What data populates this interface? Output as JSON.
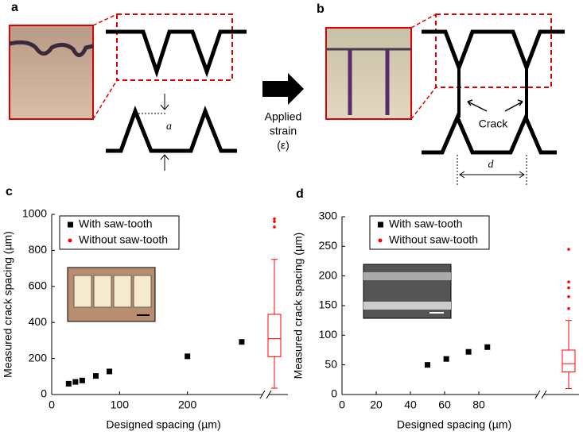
{
  "figure": {
    "panels": [
      "a",
      "b"
    ],
    "arrow_label": [
      "Applied",
      "strain",
      "(ε)"
    ],
    "crack_label": "Crack",
    "dim_a": "a",
    "dim_d": "d"
  },
  "chart_data": [
    {
      "type": "scatter",
      "panel": "c",
      "x_label": "Designed spacing (µm)",
      "y_label": "Measured crack spacing (µm)",
      "xlim": [
        0,
        300
      ],
      "xticks": [
        0,
        100,
        200
      ],
      "ylim": [
        0,
        1000
      ],
      "yticks": [
        0,
        200,
        400,
        600,
        800,
        1000
      ],
      "series": [
        {
          "name": "With saw-tooth",
          "color": "#000000",
          "x": [
            25,
            35,
            45,
            65,
            85,
            200,
            280
          ],
          "values": [
            60,
            70,
            78,
            103,
            128,
            212,
            292
          ]
        },
        {
          "name": "Without saw-tooth",
          "color": "#ff0000",
          "box": {
            "whislo": 35,
            "q1": 210,
            "med": 310,
            "q3": 445,
            "whishi": 750
          },
          "fliers": [
            930,
            960,
            975
          ]
        }
      ]
    },
    {
      "type": "scatter",
      "panel": "d",
      "x_label": "Designed spacing (µm)",
      "y_label": "Measured crack spacing (µm)",
      "xlim": [
        0,
        100
      ],
      "xticks": [
        0,
        20,
        40,
        60,
        80
      ],
      "ylim": [
        0,
        300
      ],
      "yticks": [
        0,
        50,
        100,
        150,
        200,
        250,
        300
      ],
      "series": [
        {
          "name": "With saw-tooth",
          "color": "#000000",
          "x": [
            50,
            61,
            74,
            85
          ],
          "values": [
            50,
            60,
            72,
            80
          ]
        },
        {
          "name": "Without saw-tooth",
          "color": "#ff0000",
          "box": {
            "whislo": 10,
            "q1": 38,
            "med": 52,
            "q3": 75,
            "whishi": 125
          },
          "fliers": [
            145,
            165,
            180,
            190,
            245
          ]
        }
      ]
    }
  ]
}
